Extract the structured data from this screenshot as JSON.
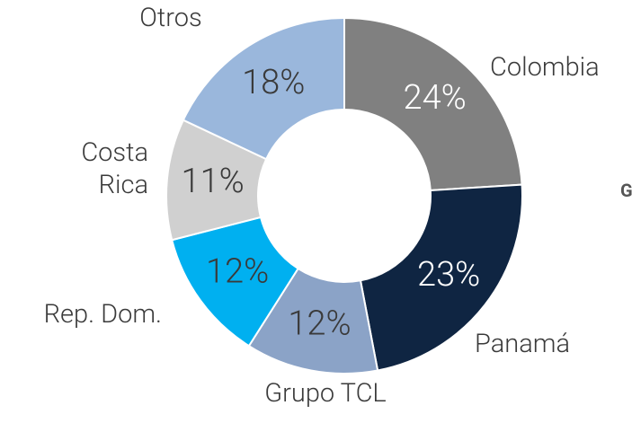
{
  "chart_data": {
    "type": "donut",
    "categories": [
      "Colombia",
      "Panamá",
      "Grupo TCL",
      "Rep. Dom.",
      "Costa Rica",
      "Otros"
    ],
    "values": [
      24,
      23,
      12,
      12,
      11,
      18
    ],
    "value_labels": [
      "24%",
      "23%",
      "12%",
      "12%",
      "11%",
      "18%"
    ],
    "colors": [
      "#808080",
      "#0f2542",
      "#8ba3c7",
      "#00b0f0",
      "#d0d0d0",
      "#9ab7dc"
    ],
    "annotation": "G"
  }
}
